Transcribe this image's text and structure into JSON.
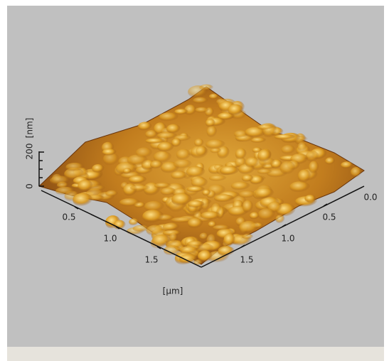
{
  "z_axis": {
    "ticks": [
      "0",
      "200"
    ],
    "unit": "[nm]"
  },
  "left_axis": {
    "ticks": [
      "0.5",
      "1.0",
      "1.5"
    ]
  },
  "right_axis": {
    "ticks": [
      "0.0",
      "0.5",
      "1.0",
      "1.5"
    ]
  },
  "lateral_unit": "[µm]"
}
